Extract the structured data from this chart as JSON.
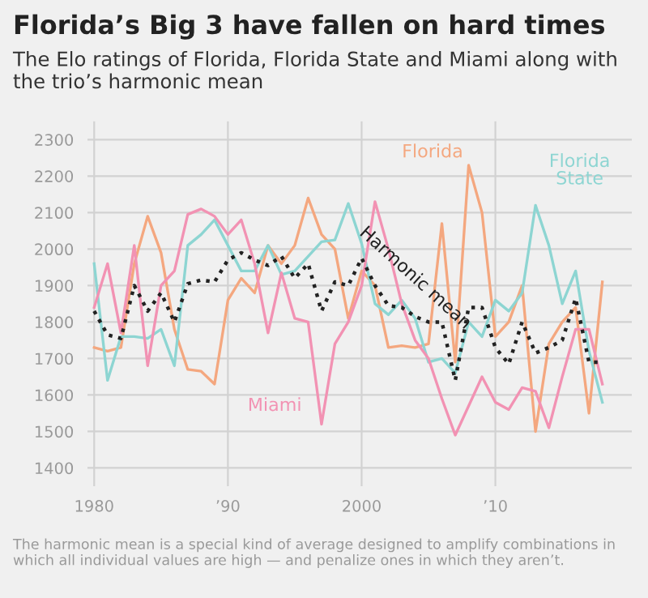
{
  "chart_data": {
    "type": "line",
    "title": "Florida’s Big 3 have fallen on hard times",
    "subtitle": "The Elo ratings of Florida, Florida State and Miami along with the trio’s harmonic mean",
    "x": [
      1980,
      1981,
      1982,
      1983,
      1984,
      1985,
      1986,
      1987,
      1988,
      1989,
      1990,
      1991,
      1992,
      1993,
      1994,
      1995,
      1996,
      1997,
      1998,
      1999,
      2000,
      2001,
      2002,
      2003,
      2004,
      2005,
      2006,
      2007,
      2008,
      2009,
      2010,
      2011,
      2012,
      2013,
      2014,
      2015,
      2016,
      2017,
      2018
    ],
    "series": [
      {
        "name": "Florida",
        "color": "#f4a77f",
        "values": [
          1730,
          1720,
          1730,
          1960,
          2090,
          1990,
          1780,
          1670,
          1665,
          1630,
          1860,
          1920,
          1880,
          2010,
          1960,
          2010,
          2140,
          2040,
          2000,
          1810,
          1940,
          1900,
          1730,
          1735,
          1730,
          1740,
          2070,
          1690,
          2230,
          2100,
          1760,
          1800,
          1900,
          1500,
          1740,
          1800,
          1840,
          1550,
          1910
        ]
      },
      {
        "name": "Florida\nState",
        "color": "#8dd5d2",
        "values": [
          1960,
          1640,
          1760,
          1760,
          1755,
          1780,
          1680,
          2010,
          2040,
          2080,
          2010,
          1940,
          1940,
          2010,
          1930,
          1940,
          1980,
          2020,
          2025,
          2125,
          2015,
          1850,
          1820,
          1860,
          1810,
          1690,
          1700,
          1660,
          1800,
          1760,
          1860,
          1830,
          1880,
          2120,
          2010,
          1850,
          1940,
          1720,
          1580
        ]
      },
      {
        "name": "Miami",
        "color": "#f292b3",
        "values": [
          1840,
          1960,
          1770,
          2010,
          1680,
          1900,
          1940,
          2095,
          2110,
          2090,
          2040,
          2080,
          1960,
          1770,
          1935,
          1810,
          1800,
          1520,
          1740,
          1800,
          1900,
          2130,
          2000,
          1850,
          1750,
          1700,
          1590,
          1490,
          1570,
          1650,
          1580,
          1560,
          1620,
          1610,
          1510,
          1650,
          1780,
          1780,
          1630
        ]
      },
      {
        "name": "Harmonic mean",
        "color": "#222222",
        "line_style": "dotted",
        "values": [
          1830,
          1765,
          1755,
          1900,
          1830,
          1880,
          1800,
          1905,
          1915,
          1910,
          1970,
          1990,
          1970,
          1955,
          1980,
          1920,
          1960,
          1830,
          1910,
          1900,
          1975,
          1900,
          1845,
          1840,
          1815,
          1800,
          1800,
          1640,
          1840,
          1840,
          1730,
          1685,
          1800,
          1715,
          1730,
          1750,
          1865,
          1690,
          1690
        ]
      }
    ],
    "xlim": [
      1979.5,
      2020.2
    ],
    "ylim": [
      1350,
      2350
    ],
    "xticks": [
      1980,
      {
        "value": 1990,
        "label": "’90"
      },
      2000,
      {
        "value": 2010,
        "label": "’10"
      }
    ],
    "yticks": [
      1400,
      1500,
      1600,
      1700,
      1800,
      1900,
      2000,
      2100,
      2200,
      2300
    ],
    "grid": true,
    "line_style": "solid",
    "annotations": [
      "The harmonic mean is a special kind of average designed to amplify combinations in which all individual values are high — and penalize ones in which they aren’t."
    ]
  }
}
